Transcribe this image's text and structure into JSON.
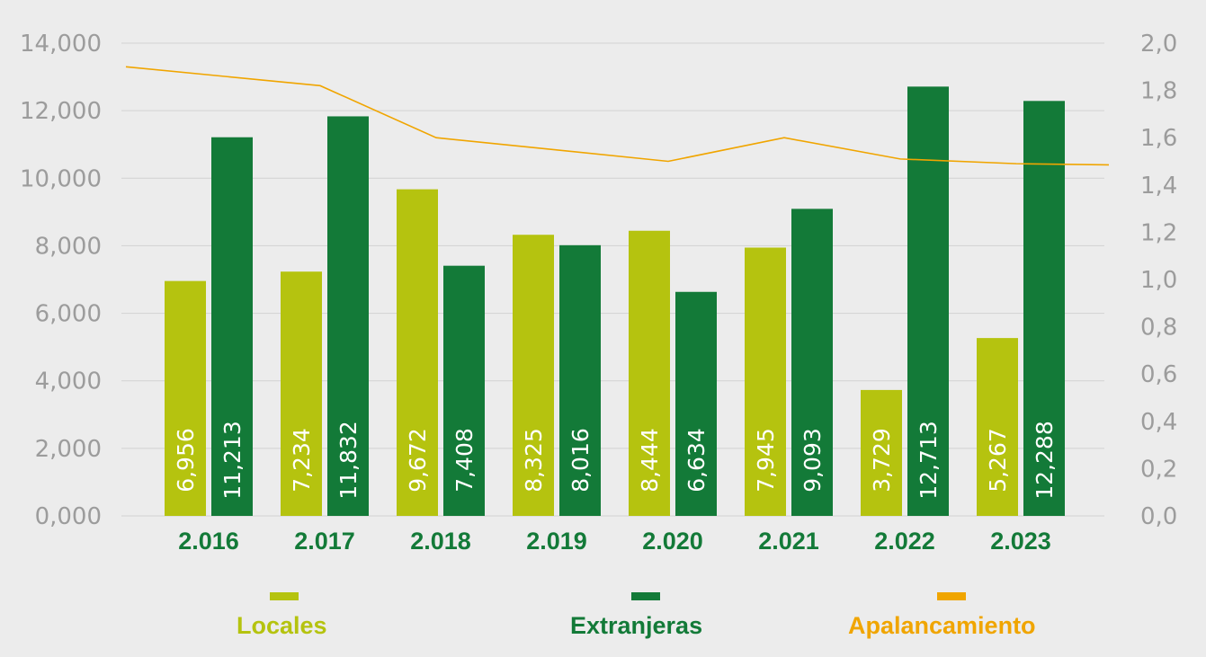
{
  "chart_data": {
    "type": "bar",
    "categories": [
      "2.016",
      "2.017",
      "2.018",
      "2.019",
      "2.020",
      "2.021",
      "2.022",
      "2.023"
    ],
    "series": [
      {
        "name": "Locales",
        "color": "#b5c30f",
        "axis": "left",
        "values": [
          6956,
          7234,
          9672,
          8325,
          8444,
          7945,
          3729,
          5267
        ],
        "labels": [
          "6,956",
          "7,234",
          "9,672",
          "8,325",
          "8,444",
          "7,945",
          "3,729",
          "5,267"
        ]
      },
      {
        "name": "Extranjeras",
        "color": "#137a38",
        "axis": "left",
        "values": [
          11213,
          11832,
          7408,
          8016,
          6634,
          9093,
          12713,
          12288
        ],
        "labels": [
          "11,213",
          "11,832",
          "7,408",
          "8,016",
          "6,634",
          "9,093",
          "12,713",
          "12,288"
        ]
      },
      {
        "name": "Apalancamiento",
        "color": "#f0a500",
        "type": "line",
        "axis": "right",
        "values": [
          1.9,
          1.82,
          1.6,
          1.55,
          1.5,
          1.6,
          1.51,
          1.49
        ]
      }
    ],
    "y_left": {
      "range": [
        0,
        14000
      ],
      "ticks": [
        "0,000",
        "2,000",
        "4,000",
        "6,000",
        "8,000",
        "10,000",
        "12,000",
        "14,000"
      ]
    },
    "y_right": {
      "range": [
        0,
        2.0
      ],
      "ticks": [
        "0,0",
        "0,2",
        "0,4",
        "0,6",
        "0,8",
        "1,0",
        "1,2",
        "1,4",
        "1,6",
        "1,8",
        "2,0"
      ]
    },
    "grid": true,
    "legend": "bottom",
    "colors": {
      "category_text": "#137a38",
      "tick_text": "#9c9c9c",
      "grid": "#d2d2d2"
    }
  }
}
